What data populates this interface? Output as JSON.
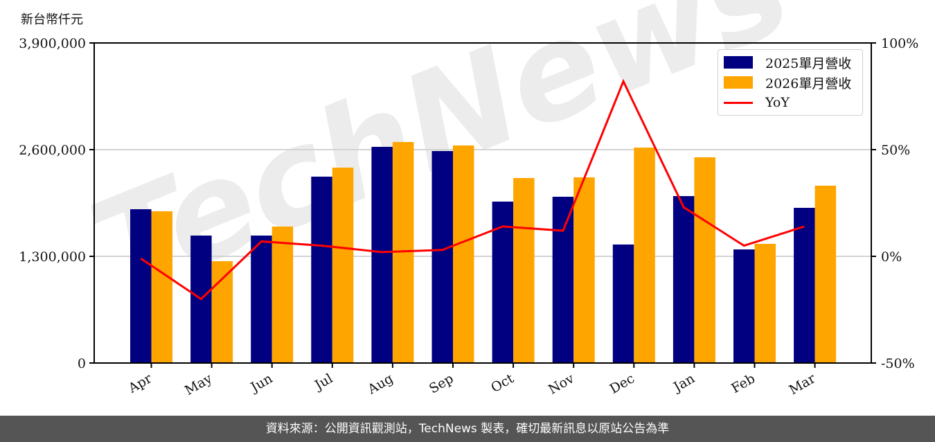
{
  "unit_label": "新台幣仟元",
  "footer": "資料來源：公開資訊觀測站，TechNews 製表，確切最新訊息以原站公告為準",
  "watermark": "TechNews",
  "colors": {
    "series_2025": "#000080",
    "series_2026": "#FFA500",
    "yoy": "#FF0000",
    "grid": "#d3d3d3",
    "footer_bg": "#555555"
  },
  "legend": {
    "items": [
      {
        "label": "2025單月營收",
        "type": "bar",
        "color": "#000080"
      },
      {
        "label": "2026單月營收",
        "type": "bar",
        "color": "#FFA500"
      },
      {
        "label": "YoY",
        "type": "line",
        "color": "#FF0000"
      }
    ]
  },
  "chart_data": {
    "type": "bar",
    "title": "",
    "xlabel": "",
    "ylabel": "新台幣仟元",
    "y2label": "",
    "categories": [
      "Apr",
      "May",
      "Jun",
      "Jul",
      "Aug",
      "Sep",
      "Oct",
      "Nov",
      "Dec",
      "Jan",
      "Feb",
      "Mar"
    ],
    "series": [
      {
        "name": "2025單月營收",
        "type": "bar",
        "axis": "left",
        "values": [
          1874000,
          1553000,
          1553000,
          2271000,
          2634000,
          2583000,
          1967000,
          2026000,
          1444000,
          2034000,
          1384000,
          1891000
        ]
      },
      {
        "name": "2026單月營收",
        "type": "bar",
        "axis": "left",
        "values": [
          1849000,
          1241000,
          1663000,
          2381000,
          2693000,
          2651000,
          2254000,
          2262000,
          2625000,
          2507000,
          1452000,
          2161000
        ]
      },
      {
        "name": "YoY",
        "type": "line",
        "axis": "right",
        "unit": "%",
        "values": [
          -1,
          -20,
          7,
          5,
          2,
          3,
          14,
          12,
          82,
          23,
          5,
          14
        ]
      }
    ],
    "ylim": [
      0,
      3900000
    ],
    "yticks": [
      0,
      1300000,
      2600000,
      3900000
    ],
    "ytick_labels": [
      "0",
      "1,300,000",
      "2,600,000",
      "3,900,000"
    ],
    "y2lim": [
      -50,
      100
    ],
    "y2ticks": [
      -50,
      0,
      50,
      100
    ],
    "y2tick_labels": [
      "-50%",
      "0%",
      "50%",
      "100%"
    ],
    "grid": true,
    "legend_position": "upper right",
    "xtick_rotation": 30
  }
}
